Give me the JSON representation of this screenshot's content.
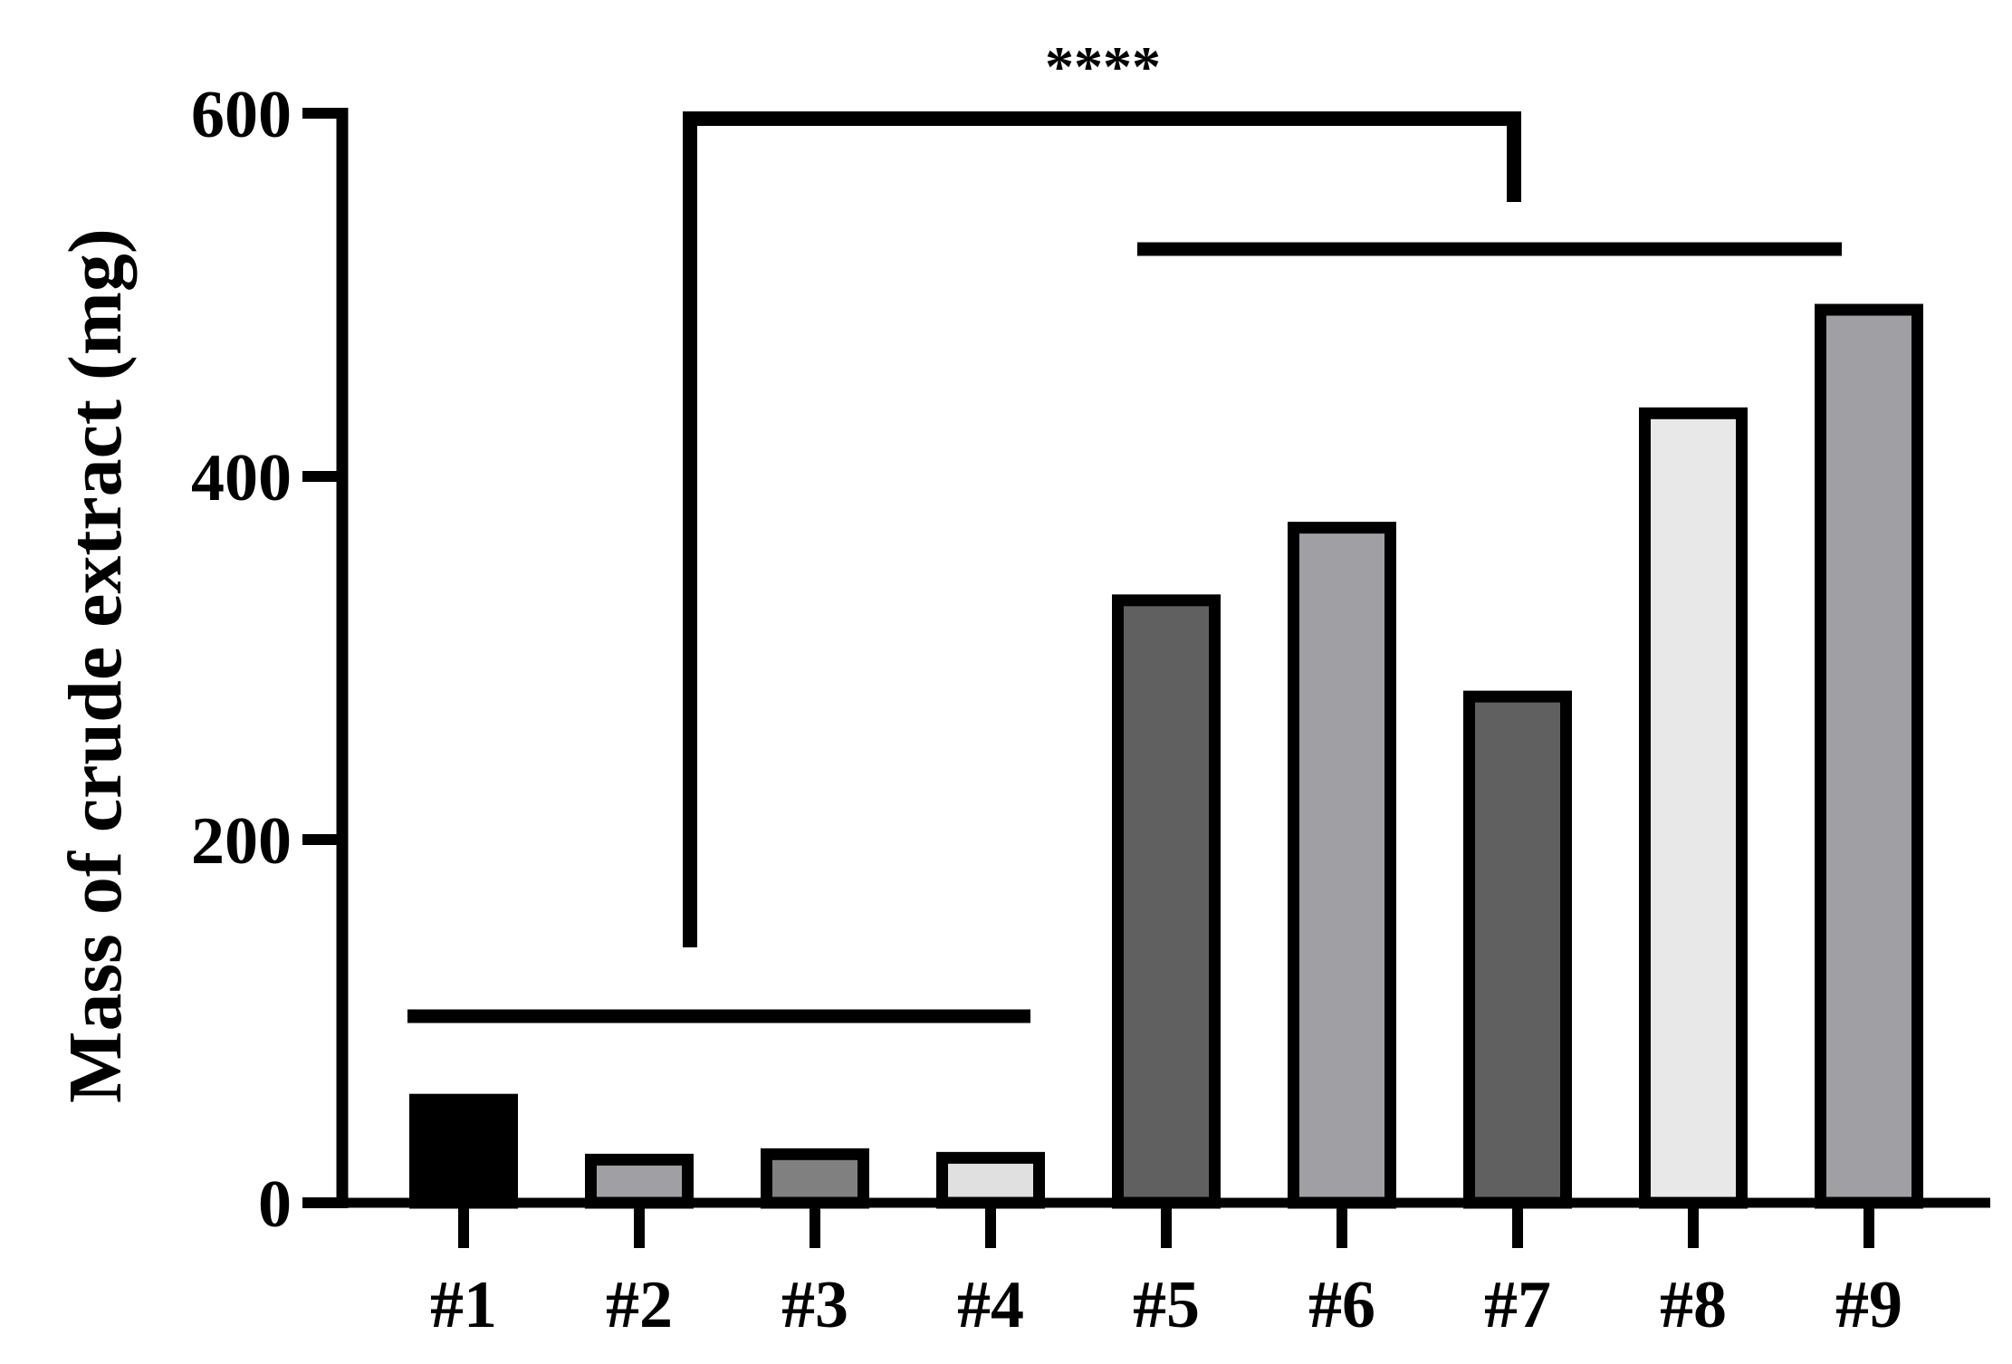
{
  "chart_data": {
    "type": "bar",
    "categories": [
      "#1",
      "#2",
      "#3",
      "#4",
      "#5",
      "#6",
      "#7",
      "#8",
      "#9"
    ],
    "values": [
      60,
      27,
      30,
      28,
      335,
      375,
      282,
      438,
      495
    ],
    "bar_colors": [
      "#000000",
      "#a0a0a4",
      "#808080",
      "#e0e0e0",
      "#606060",
      "#a0a0a4",
      "#606060",
      "#e8e8e8",
      "#a0a0a4"
    ],
    "ylabel": "Mass of crude extract (mg)",
    "ylim": [
      0,
      600
    ],
    "yticks": [
      "0",
      "200",
      "400",
      "600"
    ],
    "grid": false,
    "significance": {
      "label": "****",
      "groups": [
        [
          "#1",
          "#4"
        ],
        [
          "#5",
          "#9"
        ]
      ]
    }
  }
}
